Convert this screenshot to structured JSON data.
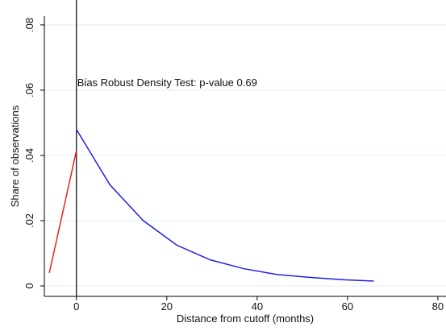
{
  "chart_data": {
    "type": "line",
    "xlabel": "Distance from cutoff (months)",
    "ylabel": "Share of observations",
    "annotation": "Bias Robust Density Test: p-value 0.69",
    "vline": 0,
    "xlim": [
      -7.1,
      81.8
    ],
    "xticks": [
      0,
      20,
      40,
      60,
      80
    ],
    "ylim": [
      -0.0032,
      0.0827
    ],
    "yticks": [
      0,
      {
        "value": 0.02,
        "label": ".02"
      },
      {
        "value": 0.04,
        "label": ".04"
      },
      {
        "value": 0.06,
        "label": ".06"
      },
      {
        "value": 0.08,
        "label": ".08"
      }
    ],
    "grid": true,
    "series": [
      {
        "color": "#e8231f",
        "x": [
          -6,
          0
        ],
        "values": [
          0.004,
          0.0415
        ]
      },
      {
        "color": "#1f1fe8",
        "x": [
          0,
          7.4,
          14.8,
          22.2,
          29.6,
          37,
          44.4,
          51.8,
          59.2,
          65.8
        ],
        "values": [
          0.048,
          0.031,
          0.02,
          0.0125,
          0.008,
          0.0053,
          0.0035,
          0.0026,
          0.0019,
          0.0015
        ]
      }
    ]
  }
}
